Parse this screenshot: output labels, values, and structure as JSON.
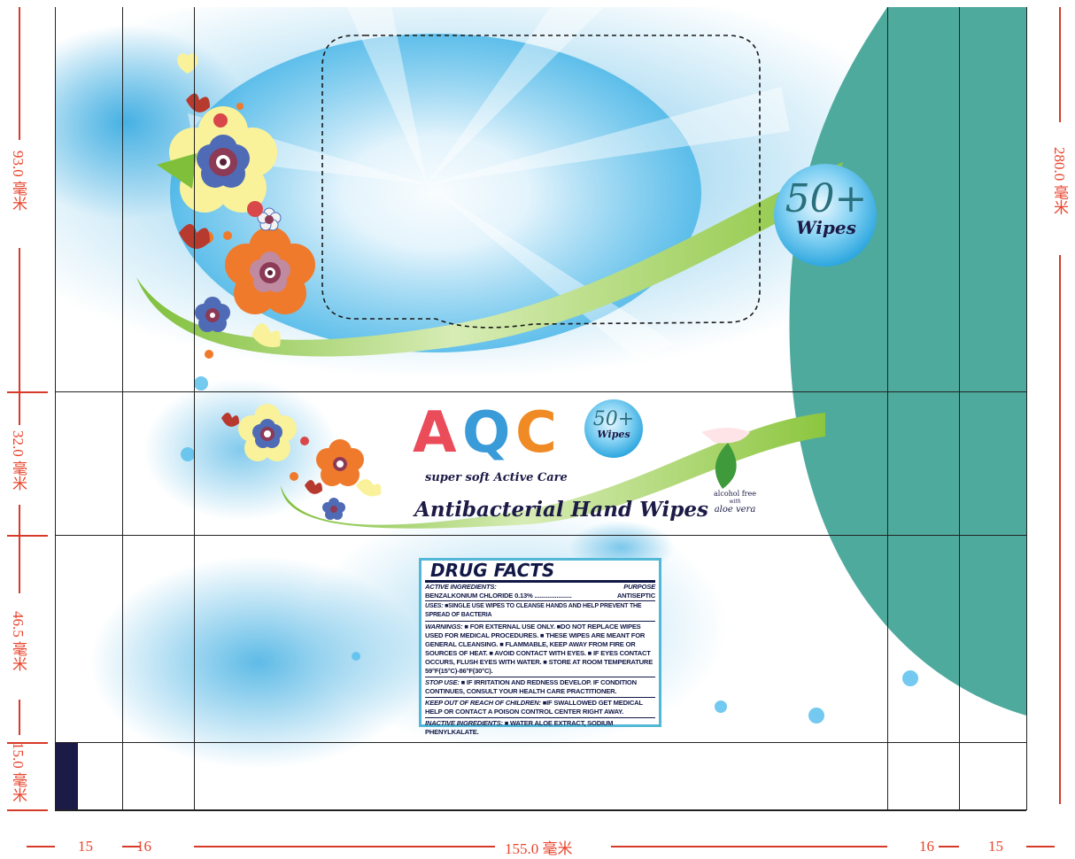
{
  "dimensions": {
    "left": [
      "93.0 毫米",
      "32.0 毫米",
      "46.5 毫米",
      "15.0 毫米"
    ],
    "right": "280.0 毫米",
    "bottom": [
      "15",
      "16",
      "155.0 毫米",
      "16",
      "15"
    ]
  },
  "package": {
    "badge_number": "50+",
    "badge_label": "Wipes",
    "brand": "AQC",
    "tagline": "super soft Active Care",
    "product_name": "Antibacterial Hand Wipes",
    "alcohol_free": "alcohol free",
    "with": "with",
    "aloe": "aloe vera"
  },
  "drug_facts": {
    "title": "DRUG FACTS",
    "active_ingredients_label": "ACTIVE INGREDIENTS:",
    "purpose_label": "PURPOSE",
    "ingredient": "BENZALKONIUM CHLORIDE  0.13%  ......................",
    "purpose": "ANTISEPTIC",
    "uses_label": "USES:",
    "uses": "■SINGLE USE WIPES TO CLEANSE HANDS AND HELP PREVENT THE SPREAD OF BACTERIA",
    "warnings_label": "WARNINGS:",
    "warnings": "■ FOR EXTERNAL USE ONLY. ■DO NOT REPLACE WIPES USED FOR MEDICAL PROCEDURES. ■ THESE WIPES ARE MEANT FOR GENERAL CLEANSING.  ■ FLAMMABLE, KEEP AWAY FROM FIRE OR SOURCES OF HEAT. ■ AVOID CONTACT WITH EYES. ■ IF EYES CONTACT OCCURS, FLUSH EYES WITH WATER. ■ STORE AT ROOM TEMPERATURE 59°F(15°C)-86°F(30°C).",
    "stop_use_label": "STOP USE:",
    "stop_use": "■ IF IRRITATION AND REDNESS DEVELOP. IF CONDITION CONTINUES, CONSULT YOUR HEALTH CARE PRACTITIONER.",
    "keep_out_label": "KEEP OUT OF REACH OF CHILDREN:",
    "keep_out": "■IF SWALLOWED GET MEDICAL HELP OR CONTACT A POISON CONTROL CENTER RIGHT AWAY.",
    "inactive_label": "INACTIVE INGREDIENTS:",
    "inactive": "■ WATER ALOE EXTRACT, SODIUM PHENYLKALATE."
  },
  "colors": {
    "teal": "#4faa9e",
    "sky": "#3fb0e3",
    "green": "#8cc63f",
    "navy": "#1c1a46",
    "dimension_red": "#e8442c"
  }
}
